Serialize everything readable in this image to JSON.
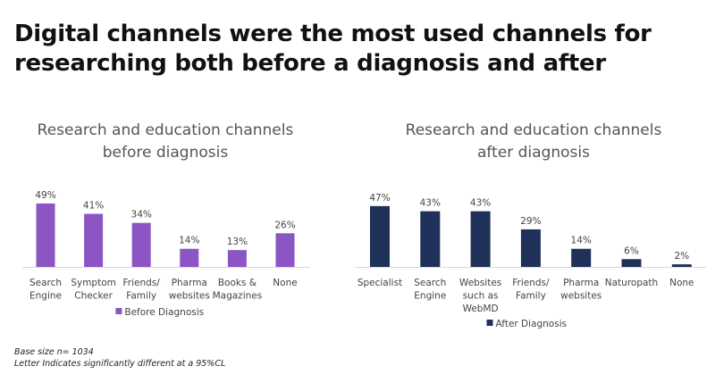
{
  "title": [
    "Digital channels were the most used channels for",
    "researching both before a diagnosis and after"
  ],
  "footnotes": [
    "Base size n= 1034",
    "Letter Indicates significantly different at a 95%CL"
  ],
  "chart_data": [
    {
      "type": "bar",
      "title": [
        "Research and education channels",
        "before diagnosis"
      ],
      "categories": [
        [
          "Search",
          "Engine"
        ],
        [
          "Symptom",
          "Checker"
        ],
        [
          "Friends/",
          "Family"
        ],
        [
          "Pharma",
          "websites"
        ],
        [
          "Books &",
          "Magazines"
        ],
        [
          "None"
        ]
      ],
      "series": [
        {
          "name": "Before Diagnosis",
          "values": [
            49,
            41,
            34,
            14,
            13,
            26
          ],
          "color": "#8b55c4"
        }
      ],
      "value_format": "percent",
      "legend": "bottom",
      "grid": false
    },
    {
      "type": "bar",
      "title": [
        "Research and education channels",
        "after diagnosis"
      ],
      "categories": [
        [
          "Specialist"
        ],
        [
          "Search",
          "Engine"
        ],
        [
          "Websites",
          "such as",
          "WebMD"
        ],
        [
          "Friends/",
          "Family"
        ],
        [
          "Pharma",
          "websites"
        ],
        [
          "Naturopath"
        ],
        [
          "None"
        ]
      ],
      "series": [
        {
          "name": "After Diagnosis",
          "values": [
            47,
            43,
            43,
            29,
            14,
            6,
            2
          ],
          "color": "#1f3158"
        }
      ],
      "value_format": "percent",
      "legend": "bottom",
      "grid": false
    }
  ]
}
